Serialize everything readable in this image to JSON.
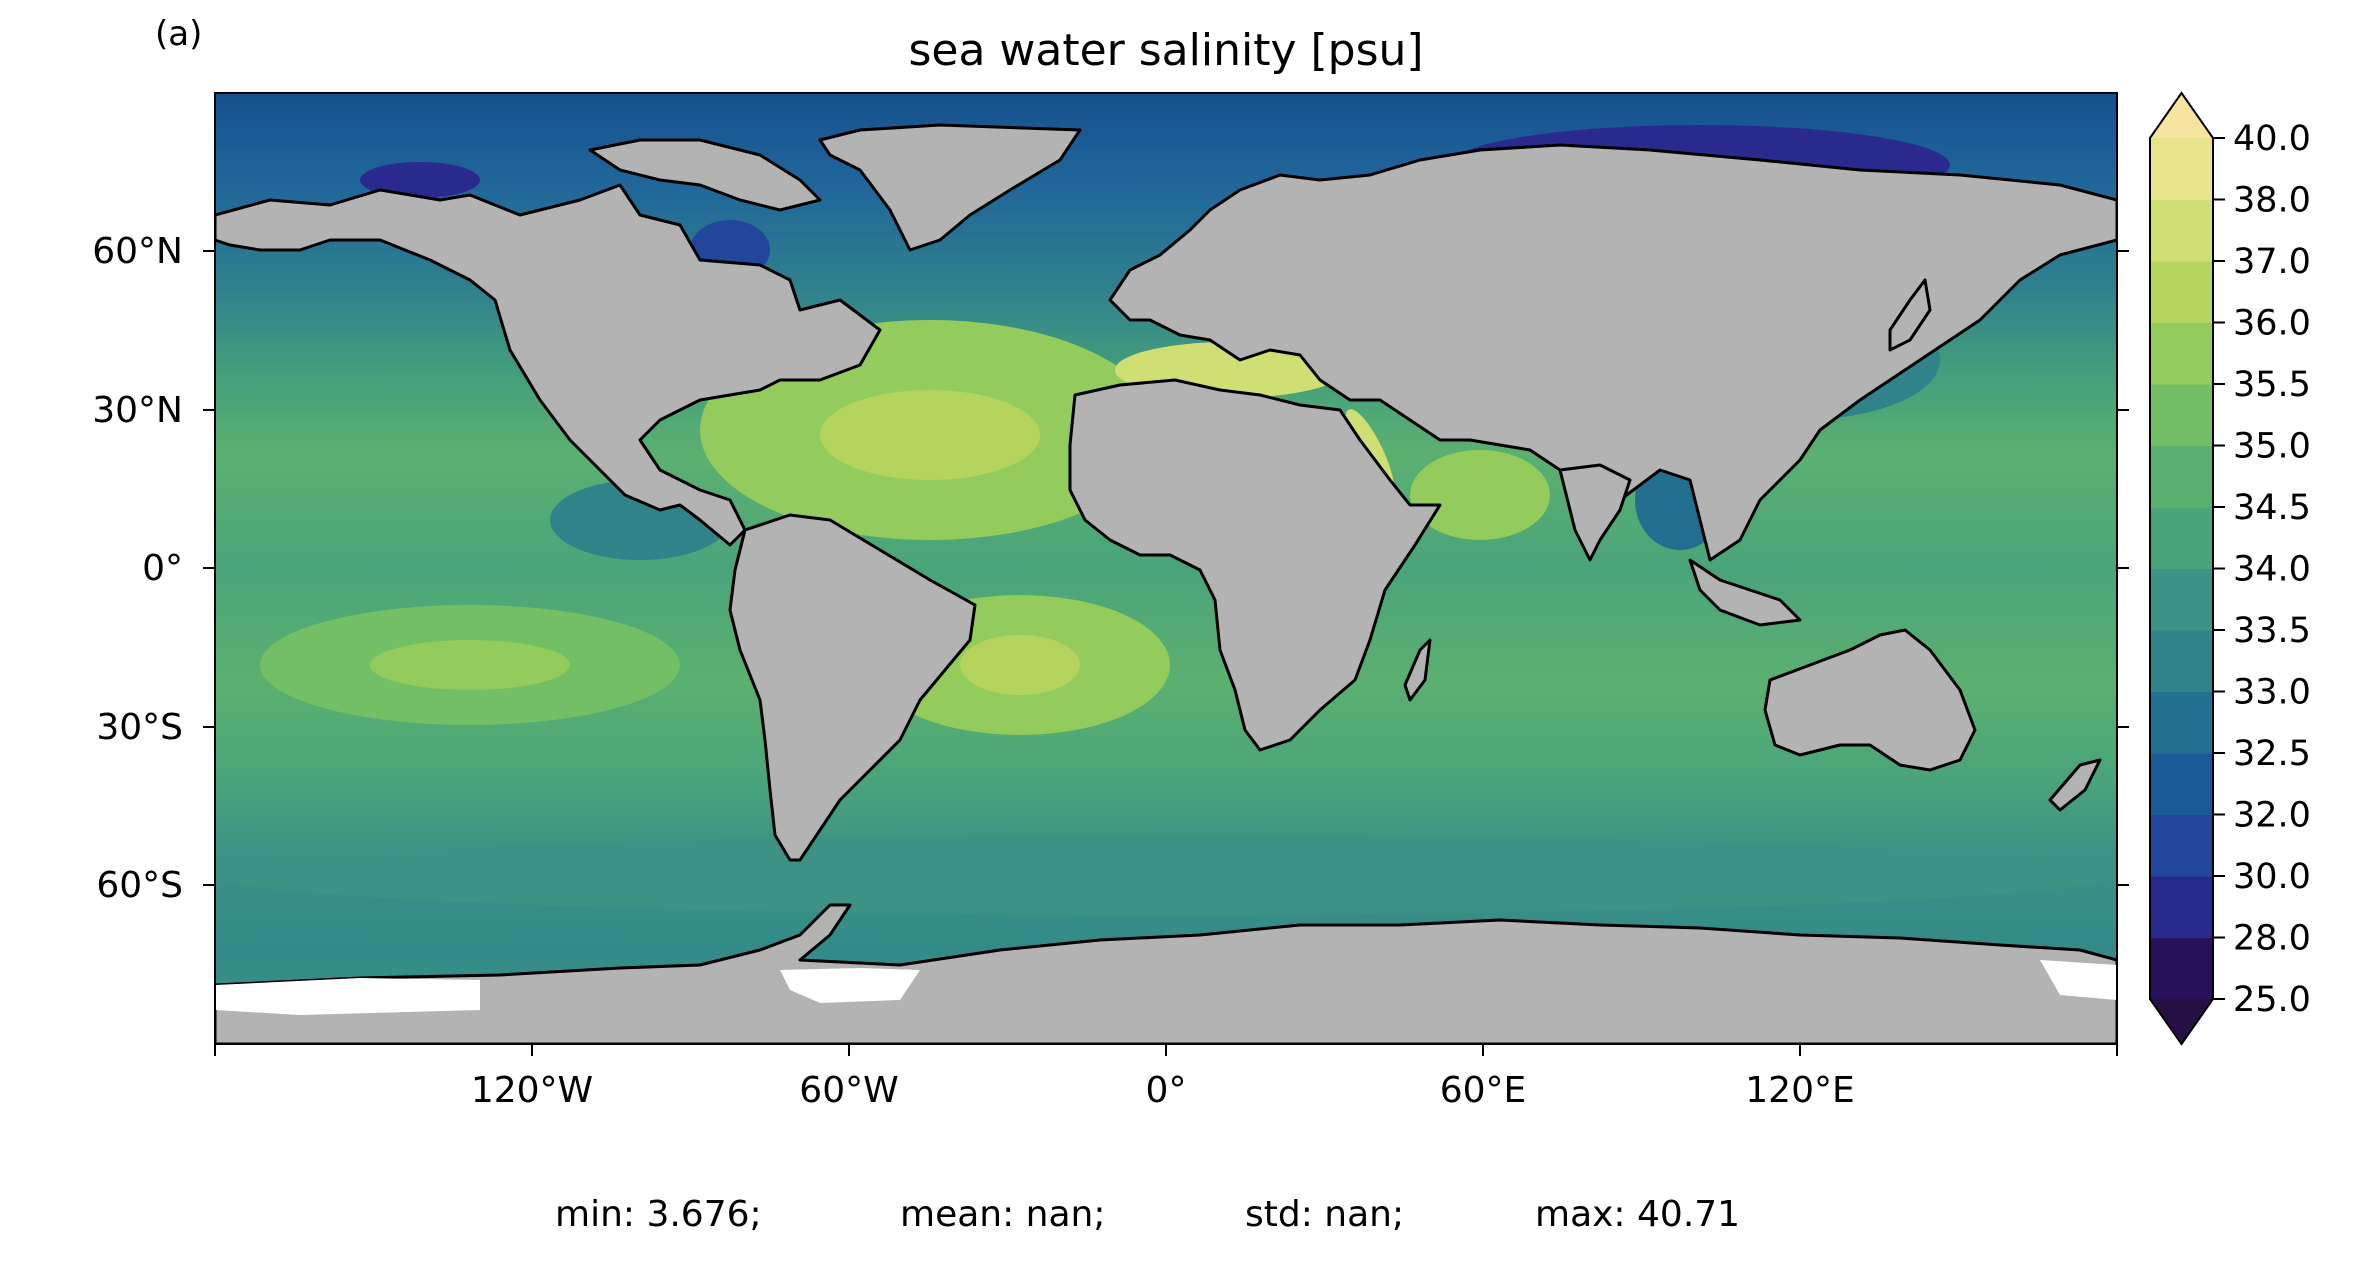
{
  "panel_label": "(a)",
  "title": "sea water salinity [psu]",
  "stats": {
    "min": "min: 3.676;",
    "mean": "mean: nan;",
    "std": "std: nan;",
    "max": "max: 40.71"
  },
  "axes": {
    "lon_ticks": [
      "120°W",
      "60°W",
      "0°",
      "60°E",
      "120°E"
    ],
    "lat_ticks": [
      "60°N",
      "30°N",
      "0°",
      "30°S",
      "60°S"
    ]
  },
  "colorbar": {
    "labels": [
      "40.0",
      "38.0",
      "37.0",
      "36.0",
      "35.5",
      "35.0",
      "34.5",
      "34.0",
      "33.5",
      "33.0",
      "32.5",
      "32.0",
      "30.0",
      "28.0",
      "25.0"
    ],
    "colors": [
      "#29105a",
      "#2a2a8e",
      "#21469b",
      "#1b5a96",
      "#236f91",
      "#2f8389",
      "#3c9285",
      "#4aa47a",
      "#5bb070",
      "#72bf65",
      "#93cb5c",
      "#b4d45e",
      "#d0df73",
      "#e7e48c"
    ],
    "extend_min_color": "#261043",
    "extend_max_color": "#f6e49f"
  },
  "chart_data": {
    "type": "heatmap",
    "title": "sea water salinity [psu]",
    "variable_units": "psu",
    "xlim": [
      -180,
      180
    ],
    "ylim": [
      -90,
      90
    ],
    "levels": [
      25.0,
      28.0,
      30.0,
      32.0,
      32.5,
      33.0,
      33.5,
      34.0,
      34.5,
      35.0,
      35.5,
      36.0,
      37.0,
      38.0,
      40.0
    ],
    "extend": "both",
    "stats": {
      "min": 3.676,
      "mean": "nan",
      "std": "nan",
      "max": 40.71
    }
  }
}
